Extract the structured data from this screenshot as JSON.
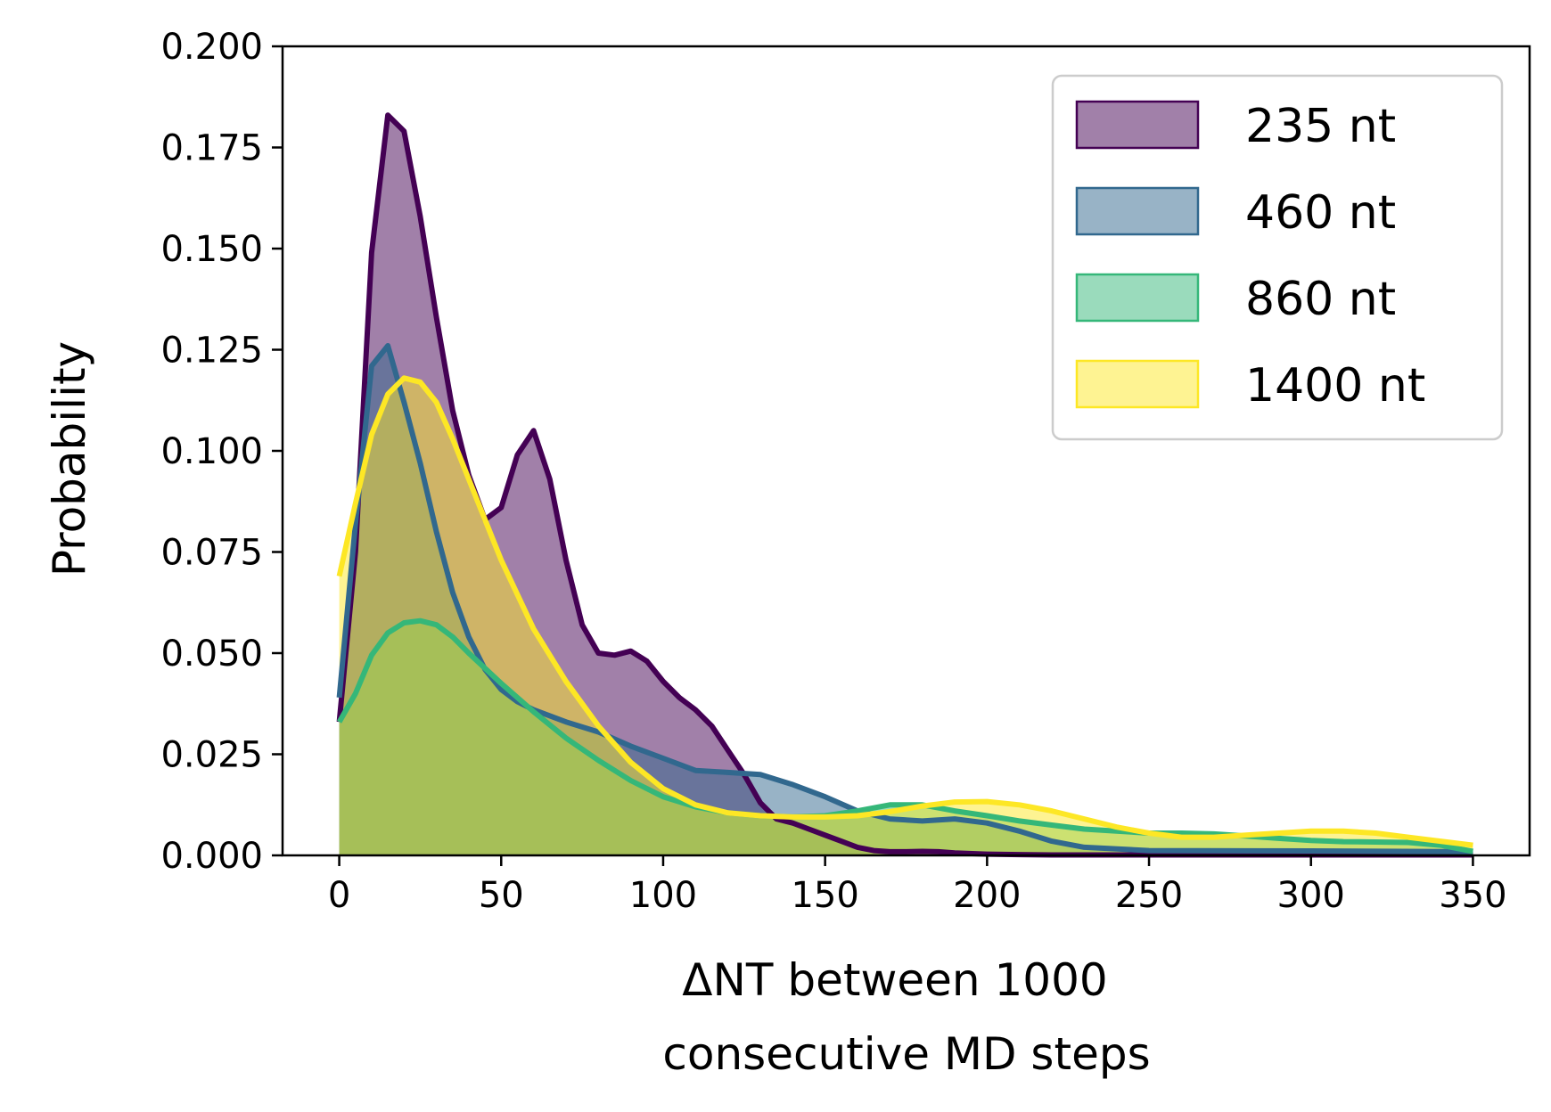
{
  "chart_data": {
    "type": "area",
    "xlabel_line1": "ΔNT between 1000",
    "xlabel_line2": "consecutive MD steps",
    "ylabel": "Probability",
    "xlim": [
      -17.5,
      367.5
    ],
    "ylim": [
      0,
      0.2
    ],
    "xticks": [
      0,
      50,
      100,
      150,
      200,
      250,
      300,
      350
    ],
    "xtick_labels": [
      "0",
      "50",
      "100",
      "150",
      "200",
      "250",
      "300",
      "350"
    ],
    "yticks": [
      0,
      0.025,
      0.05,
      0.075,
      0.1,
      0.125,
      0.15,
      0.175,
      0.2
    ],
    "ytick_labels": [
      "0.000",
      "0.025",
      "0.050",
      "0.075",
      "0.100",
      "0.125",
      "0.150",
      "0.175",
      "0.200"
    ],
    "grid": false,
    "legend_position": "top-right",
    "series": [
      {
        "name": "235 nt",
        "color": "#440154",
        "x": [
          0,
          5,
          10,
          15,
          20,
          25,
          30,
          35,
          40,
          45,
          50,
          55,
          60,
          65,
          70,
          75,
          80,
          85,
          90,
          95,
          100,
          105,
          110,
          115,
          120,
          125,
          130,
          135,
          140,
          145,
          150,
          155,
          160,
          165,
          170,
          175,
          180,
          185,
          190,
          200,
          210,
          220,
          250,
          300,
          350
        ],
        "y": [
          0.033,
          0.075,
          0.149,
          0.183,
          0.179,
          0.158,
          0.133,
          0.11,
          0.094,
          0.083,
          0.086,
          0.099,
          0.105,
          0.093,
          0.073,
          0.057,
          0.05,
          0.0495,
          0.0505,
          0.048,
          0.043,
          0.039,
          0.036,
          0.032,
          0.026,
          0.02,
          0.013,
          0.009,
          0.008,
          0.0065,
          0.005,
          0.0035,
          0.002,
          0.0012,
          0.0009,
          0.0009,
          0.001,
          0.0009,
          0.0006,
          0.0003,
          0.0002,
          0.0001,
          0.0001,
          0.0001,
          0.0001
        ]
      },
      {
        "name": "460 nt",
        "color": "#31688e",
        "x": [
          0,
          5,
          10,
          15,
          20,
          25,
          30,
          35,
          40,
          45,
          50,
          55,
          60,
          70,
          80,
          90,
          100,
          110,
          120,
          130,
          140,
          150,
          160,
          170,
          180,
          190,
          200,
          210,
          220,
          230,
          250,
          300,
          350
        ],
        "y": [
          0.039,
          0.082,
          0.121,
          0.126,
          0.112,
          0.097,
          0.08,
          0.065,
          0.054,
          0.046,
          0.041,
          0.038,
          0.036,
          0.033,
          0.0305,
          0.027,
          0.024,
          0.021,
          0.0205,
          0.02,
          0.0175,
          0.0145,
          0.011,
          0.009,
          0.0085,
          0.009,
          0.008,
          0.006,
          0.0035,
          0.002,
          0.0012,
          0.0011,
          0.0009
        ]
      },
      {
        "name": "860 nt",
        "color": "#35b779",
        "x": [
          0,
          5,
          10,
          15,
          20,
          25,
          30,
          35,
          40,
          50,
          60,
          70,
          80,
          90,
          100,
          110,
          120,
          130,
          140,
          150,
          160,
          170,
          180,
          190,
          200,
          210,
          220,
          230,
          240,
          250,
          260,
          270,
          280,
          290,
          300,
          310,
          320,
          330,
          340,
          350
        ],
        "y": [
          0.033,
          0.04,
          0.0495,
          0.055,
          0.0575,
          0.058,
          0.057,
          0.054,
          0.05,
          0.0425,
          0.0355,
          0.029,
          0.0235,
          0.0185,
          0.0145,
          0.012,
          0.0105,
          0.0098,
          0.0095,
          0.0098,
          0.011,
          0.0125,
          0.0125,
          0.011,
          0.0098,
          0.0085,
          0.0075,
          0.0065,
          0.006,
          0.0055,
          0.0055,
          0.0053,
          0.0048,
          0.0042,
          0.0037,
          0.0034,
          0.0033,
          0.0032,
          0.0025,
          0.001
        ]
      },
      {
        "name": "1400 nt",
        "color": "#fde725",
        "x": [
          0,
          5,
          10,
          15,
          20,
          25,
          30,
          35,
          40,
          45,
          50,
          60,
          70,
          80,
          90,
          100,
          110,
          120,
          130,
          140,
          150,
          160,
          170,
          180,
          190,
          200,
          210,
          220,
          230,
          240,
          250,
          260,
          270,
          280,
          290,
          300,
          310,
          320,
          330,
          340,
          350
        ],
        "y": [
          0.069,
          0.087,
          0.104,
          0.114,
          0.118,
          0.117,
          0.112,
          0.103,
          0.093,
          0.083,
          0.073,
          0.056,
          0.043,
          0.032,
          0.023,
          0.0165,
          0.0125,
          0.0105,
          0.0098,
          0.0095,
          0.0095,
          0.0098,
          0.0108,
          0.0122,
          0.0132,
          0.0133,
          0.0125,
          0.011,
          0.009,
          0.007,
          0.0055,
          0.0045,
          0.0045,
          0.005,
          0.0055,
          0.006,
          0.006,
          0.0055,
          0.0045,
          0.0035,
          0.0025
        ]
      }
    ]
  }
}
